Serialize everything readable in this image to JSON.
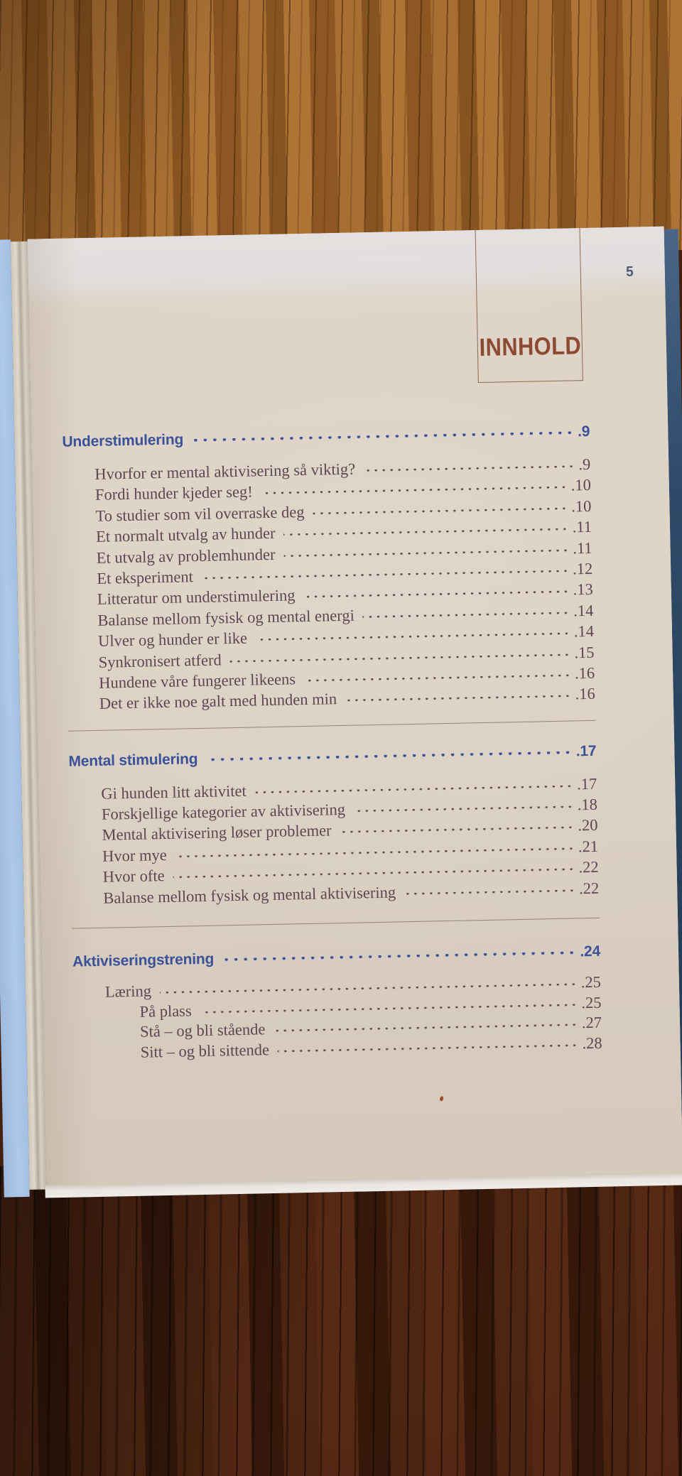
{
  "corner_page_number": "5",
  "header": {
    "title": "INNHOLD"
  },
  "toc": {
    "sections": [
      {
        "title": "Understimulering",
        "page": ".9",
        "entries": [
          {
            "label": "Hvorfor er mental aktivisering så viktig?",
            "page": ".9",
            "level": 1
          },
          {
            "label": "Fordi hunder kjeder seg!",
            "page": ".10",
            "level": 1
          },
          {
            "label": "To studier som vil overraske deg",
            "page": ".10",
            "level": 1
          },
          {
            "label": "Et normalt utvalg av hunder",
            "page": ".11",
            "level": 1
          },
          {
            "label": "Et utvalg av problemhunder",
            "page": ".11",
            "level": 1
          },
          {
            "label": "Et eksperiment",
            "page": ".12",
            "level": 1
          },
          {
            "label": "Litteratur om understimulering",
            "page": ".13",
            "level": 1
          },
          {
            "label": "Balanse mellom fysisk og mental energi",
            "page": ".14",
            "level": 1
          },
          {
            "label": "Ulver og hunder er like",
            "page": ".14",
            "level": 1
          },
          {
            "label": "Synkronisert atferd",
            "page": ".15",
            "level": 1
          },
          {
            "label": "Hundene våre fungerer likeens",
            "page": ".16",
            "level": 1
          },
          {
            "label": "Det er ikke noe galt med hunden min",
            "page": ".16",
            "level": 1
          }
        ]
      },
      {
        "title": "Mental stimulering",
        "page": ".17",
        "entries": [
          {
            "label": "Gi hunden litt aktivitet",
            "page": ".17",
            "level": 1
          },
          {
            "label": "Forskjellige kategorier av aktivisering",
            "page": ".18",
            "level": 1
          },
          {
            "label": "Mental aktivisering løser problemer",
            "page": ".20",
            "level": 1
          },
          {
            "label": "Hvor mye",
            "page": ".21",
            "level": 1
          },
          {
            "label": "Hvor ofte",
            "page": ".22",
            "level": 1
          },
          {
            "label": "Balanse mellom fysisk og mental aktivisering",
            "page": ".22",
            "level": 1
          }
        ]
      },
      {
        "title": "Aktiviseringstrening",
        "page": ".24",
        "entries": [
          {
            "label": "Læring",
            "page": ".25",
            "level": 1
          },
          {
            "label": "På plass",
            "page": ".25",
            "level": 2
          },
          {
            "label": "Stå – og bli stående",
            "page": ".27",
            "level": 2
          },
          {
            "label": "Sitt – og bli sittende",
            "page": ".28",
            "level": 2
          }
        ]
      }
    ]
  },
  "colors": {
    "heading_blue": "#3b5198",
    "entry_text": "#5e4650",
    "innhold_red": "#8d4a33",
    "corner_number": "#4f5a74",
    "cover_blue": "#adc9e8",
    "cover_navy": "#2e4a68",
    "page_cream": "#dcd2c5",
    "wood_top": "#9e6428",
    "wood_bottom": "#45200f"
  }
}
